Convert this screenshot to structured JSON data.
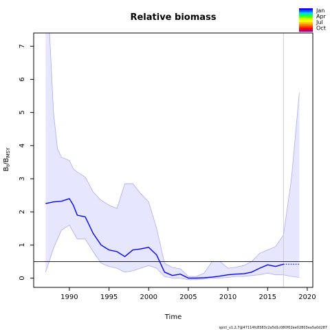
{
  "chart_data": {
    "type": "line",
    "title": "Relative biomass",
    "xlabel": "Time",
    "ylabel": {
      "main": "B",
      "sub1": "t",
      "sep": "/B",
      "sub2": "MSY"
    },
    "xlim": [
      1985.5,
      2020.7
    ],
    "ylim": [
      -0.28,
      7.4
    ],
    "x_ticks": [
      "1990",
      "1995",
      "2000",
      "2005",
      "2010",
      "2015",
      "2020"
    ],
    "y_ticks": [
      "0",
      "1",
      "2",
      "3",
      "4",
      "5",
      "6",
      "7"
    ],
    "reference_line_y": 0.5,
    "vertical_line_x": 2017,
    "estimate_end_x": 2017,
    "series": [
      {
        "role": "estimate",
        "color": "#0000ff",
        "x": [
          1987,
          1988,
          1989,
          1990,
          1990.5,
          1991,
          1992,
          1993,
          1994,
          1995,
          1996,
          1997,
          1998,
          1999,
          2000,
          2001,
          2002,
          2003,
          2004,
          2005,
          2006,
          2007,
          2008,
          2009,
          2010,
          2011,
          2012,
          2013,
          2014,
          2015,
          2016,
          2017,
          2018,
          2019
        ],
        "values": [
          2.25,
          2.3,
          2.32,
          2.4,
          2.2,
          1.9,
          1.85,
          1.35,
          1.0,
          0.85,
          0.8,
          0.65,
          0.85,
          0.88,
          0.93,
          0.7,
          0.18,
          0.08,
          0.12,
          0.0,
          0.0,
          0.01,
          0.03,
          0.06,
          0.1,
          0.12,
          0.13,
          0.18,
          0.3,
          0.4,
          0.35,
          0.42,
          0.42,
          0.42
        ]
      },
      {
        "role": "lower_ci",
        "color": "#aaaaff",
        "x": [
          1987,
          1988,
          1989,
          1990,
          1991,
          1992,
          1993,
          1994,
          1995,
          1996,
          1997,
          1998,
          1999,
          2000,
          2001,
          2002,
          2003,
          2004,
          2005,
          2006,
          2007,
          2008,
          2009,
          2010,
          2011,
          2012,
          2013,
          2014,
          2015,
          2016,
          2017,
          2018,
          2019
        ],
        "values": [
          0.18,
          0.9,
          1.45,
          1.6,
          1.18,
          1.18,
          0.8,
          0.45,
          0.35,
          0.3,
          0.18,
          0.22,
          0.3,
          0.38,
          0.3,
          0.05,
          0.0,
          0.0,
          -0.05,
          -0.05,
          -0.03,
          0.0,
          0.0,
          0.02,
          0.05,
          0.05,
          0.08,
          0.1,
          0.15,
          0.1,
          0.1,
          0.05,
          0.02
        ]
      },
      {
        "role": "upper_ci",
        "color": "#aaaaff",
        "x": [
          1987,
          1987.5,
          1988,
          1988.5,
          1989,
          1990,
          1990.5,
          1991,
          1992,
          1993,
          1994,
          1995,
          1996,
          1997,
          1998,
          1999,
          2000,
          2001,
          2002,
          2003,
          2004,
          2005,
          2006,
          2007,
          2008,
          2009,
          2010,
          2011,
          2012,
          2013,
          2014,
          2015,
          2016,
          2017,
          2018,
          2019
        ],
        "values": [
          7.4,
          7.4,
          5.0,
          3.9,
          3.65,
          3.55,
          3.3,
          3.2,
          3.05,
          2.6,
          2.35,
          2.2,
          2.1,
          2.85,
          2.85,
          2.55,
          2.3,
          1.5,
          0.45,
          0.32,
          0.28,
          0.05,
          0.05,
          0.15,
          0.5,
          0.5,
          0.3,
          0.33,
          0.38,
          0.5,
          0.75,
          0.85,
          0.95,
          1.3,
          3.0,
          5.6
        ]
      }
    ],
    "legend": {
      "placement": "top-right",
      "labels": [
        "Jan",
        "Apr",
        "Jul",
        "Oct"
      ],
      "colors": [
        "#2200ff",
        "#0066ff",
        "#00ccff",
        "#00ff66",
        "#66ff00",
        "#ccff00",
        "#ffff00",
        "#ffcc00",
        "#ff8800",
        "#ff4400",
        "#ff0000",
        "#aa0088"
      ]
    },
    "footer": "spict_v1.2.7@47114fc8383c2a5d1c080f02ee02803ea5a0d287"
  }
}
